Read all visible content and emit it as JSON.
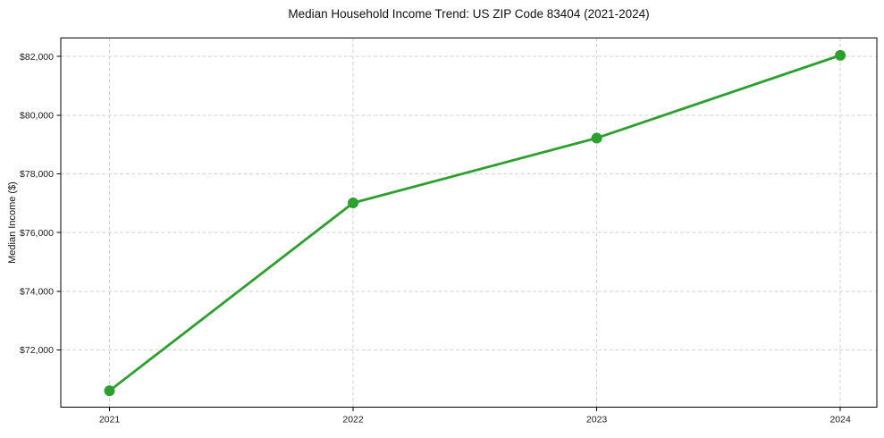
{
  "chart_data": {
    "type": "line",
    "title": "Median Household Income Trend: US ZIP Code 83404 (2021-2024)",
    "xlabel": "",
    "ylabel": "Median Income ($)",
    "x": [
      2021,
      2022,
      2023,
      2024
    ],
    "values": [
      70610,
      77010,
      79220,
      82040
    ],
    "xticks": [
      2021,
      2022,
      2023,
      2024
    ],
    "xtick_labels": [
      "2021",
      "2022",
      "2023",
      "2024"
    ],
    "yticks": [
      72000,
      74000,
      76000,
      78000,
      80000,
      82000
    ],
    "ytick_labels": [
      "$72,000",
      "$74,000",
      "$76,000",
      "$78,000",
      "$80,000",
      "$82,000"
    ],
    "xlim": [
      2020.8,
      2024.15
    ],
    "ylim": [
      70050,
      82630
    ],
    "grid": true,
    "grid_style": "dashed",
    "legend": false,
    "colors": {
      "line": "#2ca02c",
      "marker": "#2ca02c",
      "grid": "#d2d2d2",
      "spine": "#000000",
      "background": "#ffffff"
    }
  }
}
